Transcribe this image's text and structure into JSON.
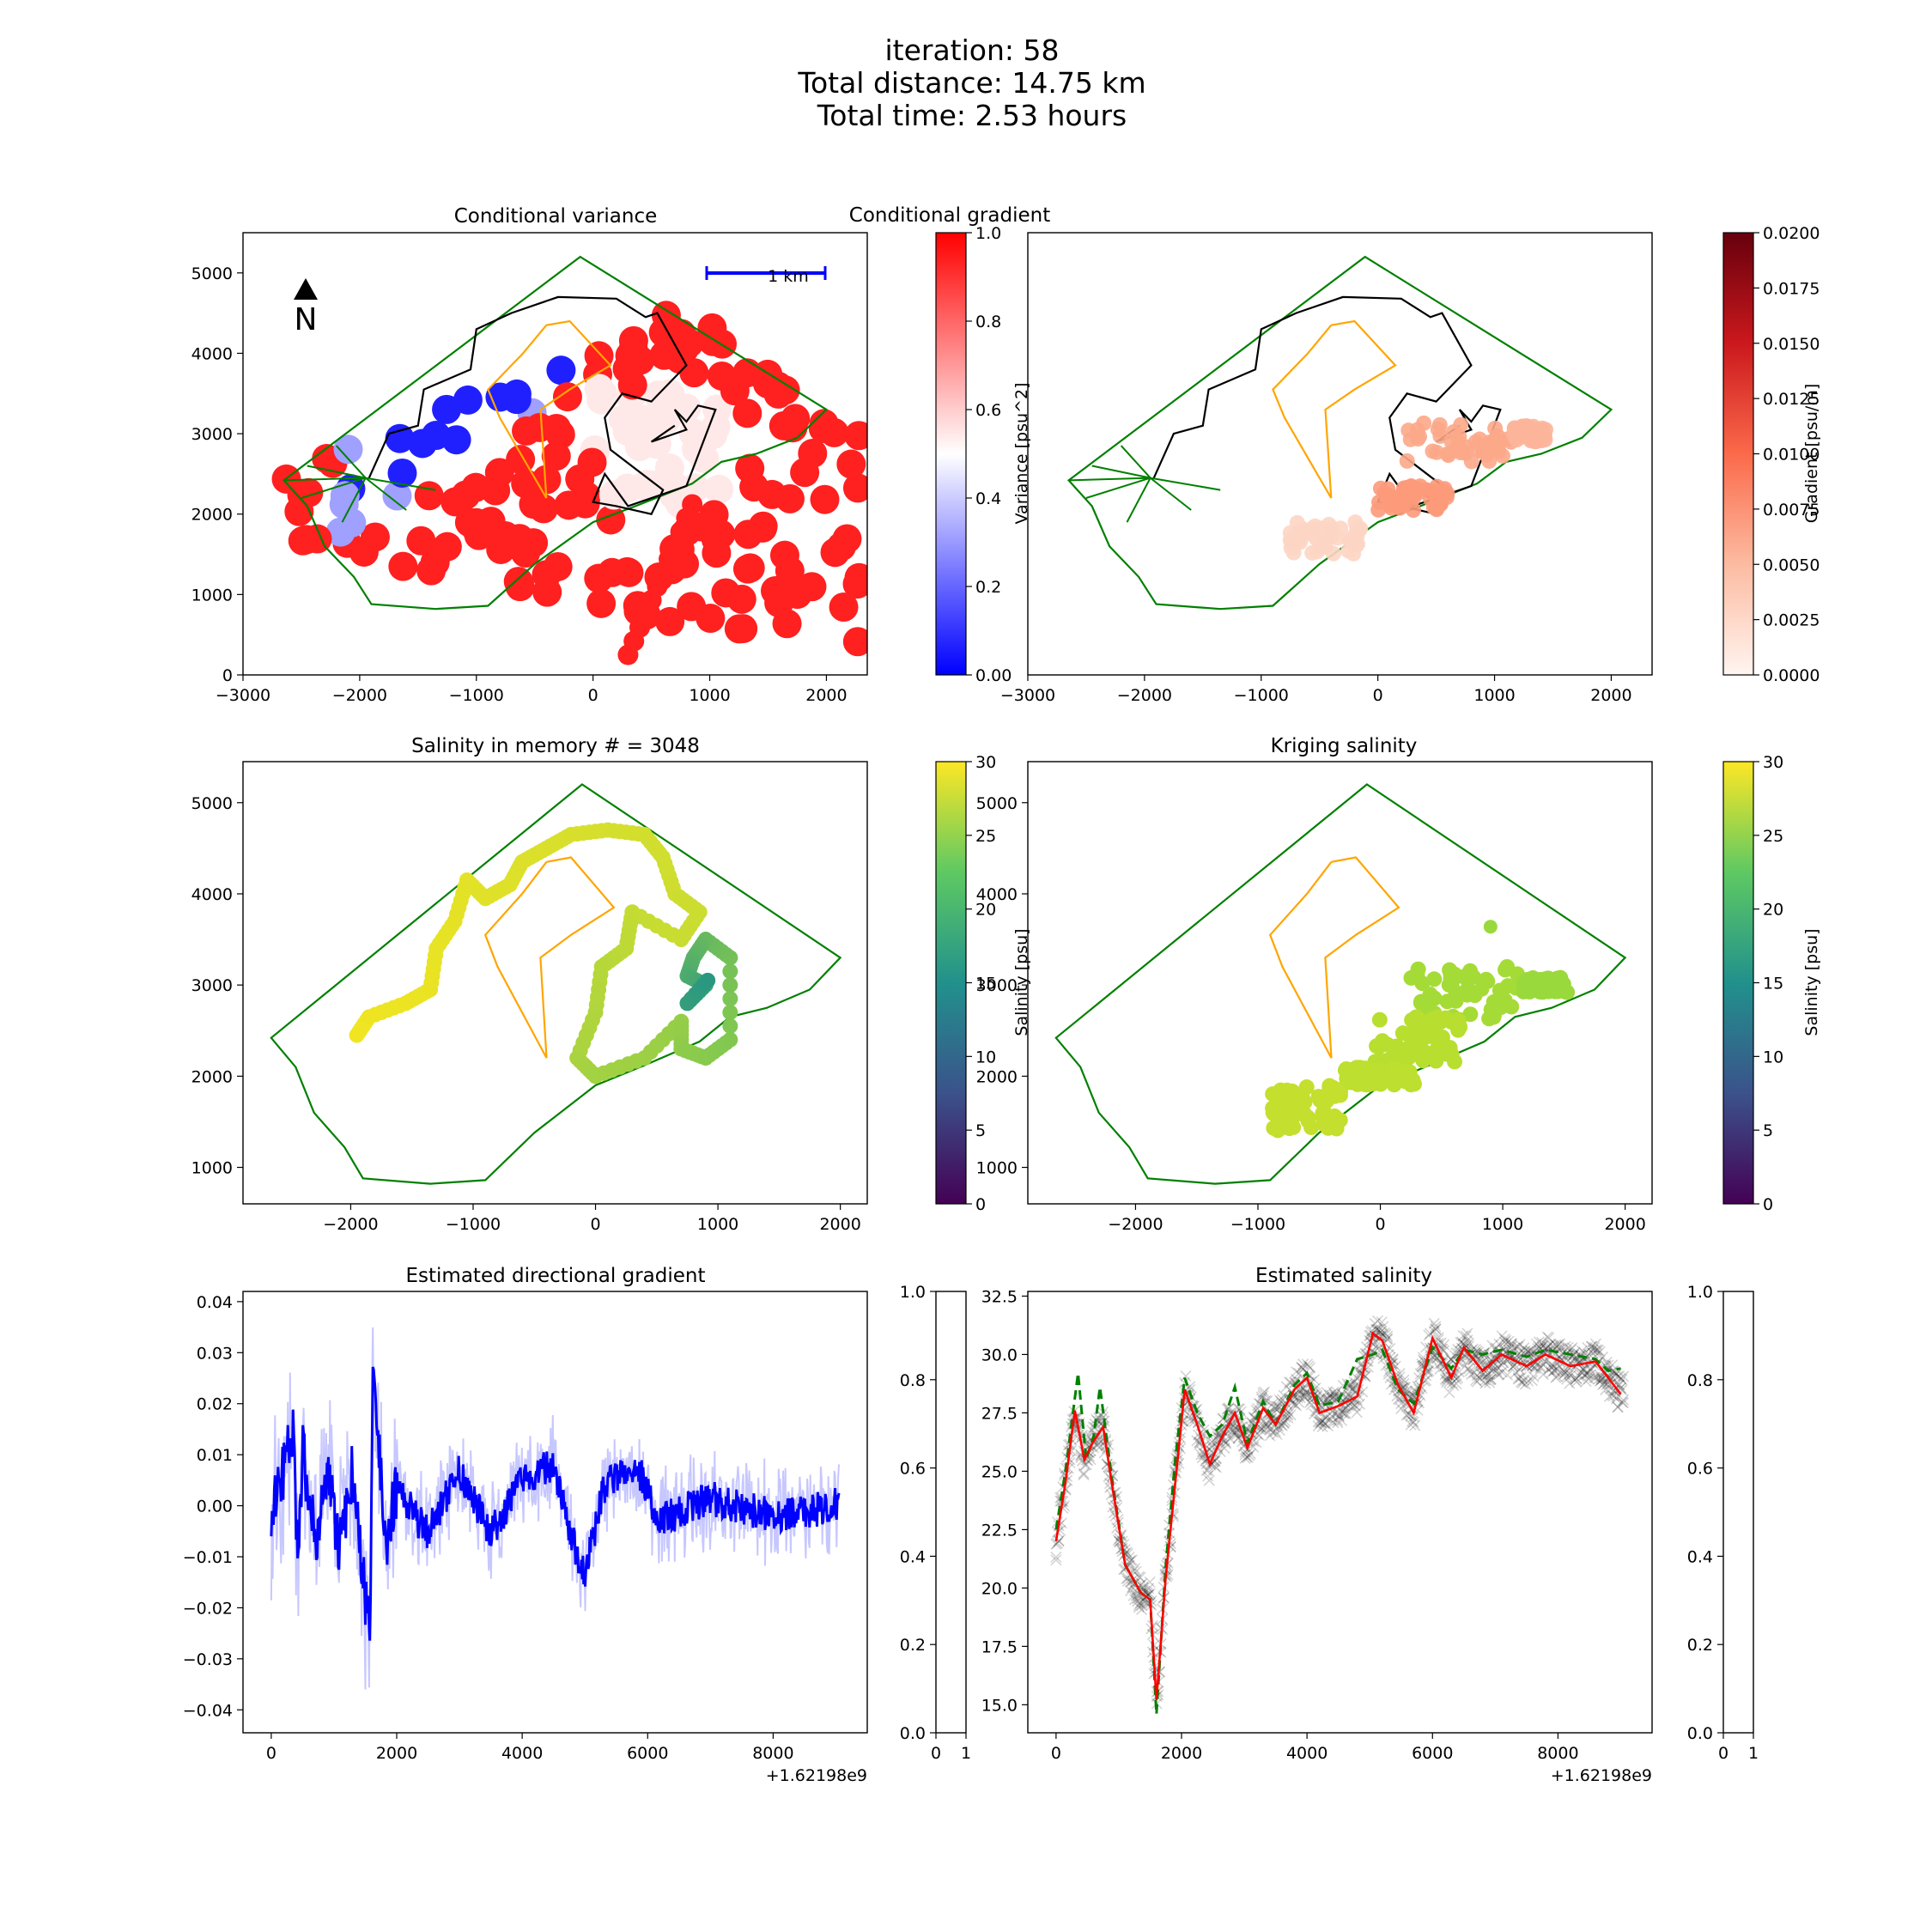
{
  "figure": {
    "suptitle": [
      "iteration: 58",
      "Total distance: 14.75 km",
      "Total time: 2.53 hours"
    ]
  },
  "chart_data": [
    {
      "type": "scatter",
      "title": "Conditional variance",
      "xticks": [
        "−3000",
        "−2000",
        "−1000",
        "0",
        "1000",
        "2000"
      ],
      "yticks": [
        "0",
        "1000",
        "2000",
        "3000",
        "4000",
        "5000"
      ],
      "xlim": [
        -3000,
        2350
      ],
      "ylim": [
        0,
        5500
      ],
      "annotations": {
        "scale_bar": "1 km",
        "north": "N"
      },
      "colorbar": {
        "label": "Variance [psu^2]",
        "ticks": [
          "0.00",
          "0.2",
          "0.4",
          "0.6",
          "0.8",
          "1.0"
        ],
        "range": [
          0,
          1
        ],
        "colormap": "bwr"
      }
    },
    {
      "type": "scatter",
      "title": "Conditional gradient",
      "xticks": [
        "−3000",
        "−2000",
        "−1000",
        "0",
        "1000",
        "2000"
      ],
      "xlim": [
        -3000,
        2350
      ],
      "ylim": [
        0,
        5500
      ],
      "colorbar": {
        "label": "Gradient [psu/m]",
        "ticks": [
          "0.0000",
          "0.0025",
          "0.0050",
          "0.0075",
          "0.0100",
          "0.0125",
          "0.0150",
          "0.0175",
          "0.0200"
        ],
        "range": [
          0,
          0.02
        ],
        "colormap": "Reds"
      }
    },
    {
      "type": "scatter",
      "title": "Salinity in memory # = 3048",
      "xticks": [
        "−2000",
        "−1000",
        "0",
        "1000",
        "2000"
      ],
      "yticks": [
        "1000",
        "2000",
        "3000",
        "4000",
        "5000"
      ],
      "xlim": [
        -2880,
        2220
      ],
      "ylim": [
        600,
        5450
      ],
      "colorbar": {
        "label": "Salinity [psu]",
        "ticks": [
          "0",
          "5",
          "10",
          "15",
          "20",
          "25",
          "30"
        ],
        "range": [
          0,
          30
        ],
        "colormap": "viridis"
      }
    },
    {
      "type": "scatter",
      "title": "Kriging salinity",
      "xticks": [
        "−2000",
        "−1000",
        "0",
        "1000",
        "2000"
      ],
      "yticks": [
        "1000",
        "2000",
        "3000",
        "4000",
        "5000"
      ],
      "xlim": [
        -2880,
        2220
      ],
      "ylim": [
        600,
        5450
      ],
      "colorbar": {
        "label": "Salinity [psu]",
        "ticks": [
          "0",
          "5",
          "10",
          "15",
          "20",
          "25",
          "30"
        ],
        "range": [
          0,
          30
        ],
        "colormap": "viridis"
      }
    },
    {
      "type": "line",
      "title": "Estimated directional gradient",
      "xticks": [
        "0",
        "2000",
        "4000",
        "6000",
        "8000"
      ],
      "x_offset_label": "+1.62198e9",
      "yticks": [
        "−0.04",
        "−0.03",
        "−0.02",
        "−0.01",
        "0.00",
        "0.01",
        "0.02",
        "0.03",
        "0.04"
      ],
      "xlim": [
        -450,
        9500
      ],
      "ylim": [
        -0.0445,
        0.042
      ],
      "side_axis": {
        "yticks": [
          "0.0",
          "0.2",
          "0.4",
          "0.6",
          "0.8",
          "1.0"
        ],
        "xticks": [
          "0",
          "1"
        ]
      },
      "series_key_points": [
        [
          0,
          0.0
        ],
        [
          200,
          0.01
        ],
        [
          350,
          0.02
        ],
        [
          420,
          -0.015
        ],
        [
          500,
          0.015
        ],
        [
          700,
          -0.01
        ],
        [
          900,
          0.008
        ],
        [
          1100,
          -0.012
        ],
        [
          1300,
          0.01
        ],
        [
          1450,
          -0.02
        ],
        [
          1580,
          -0.033
        ],
        [
          1620,
          0.032
        ],
        [
          1700,
          0.02
        ],
        [
          1850,
          -0.01
        ],
        [
          2000,
          0.005
        ],
        [
          2500,
          -0.008
        ],
        [
          3000,
          0.01
        ],
        [
          3500,
          -0.008
        ],
        [
          4000,
          0.007
        ],
        [
          4500,
          0.012
        ],
        [
          4800,
          -0.01
        ],
        [
          5000,
          -0.02
        ],
        [
          5300,
          0.005
        ],
        [
          5800,
          0.012
        ],
        [
          6200,
          -0.004
        ],
        [
          7000,
          0.002
        ],
        [
          8000,
          -0.003
        ],
        [
          9000,
          0.0
        ]
      ]
    },
    {
      "type": "line",
      "title": "Estimated salinity",
      "xticks": [
        "0",
        "2000",
        "4000",
        "6000",
        "8000"
      ],
      "x_offset_label": "+1.62198e9",
      "yticks": [
        "15.0",
        "17.5",
        "20.0",
        "22.5",
        "25.0",
        "27.5",
        "30.0",
        "32.5"
      ],
      "xlim": [
        -450,
        9500
      ],
      "ylim": [
        13.8,
        32.7
      ],
      "side_axis": {
        "yticks": [
          "0.0",
          "0.2",
          "0.4",
          "0.6",
          "0.8",
          "1.0"
        ],
        "xticks": [
          "0",
          "1"
        ]
      },
      "series": [
        {
          "points": [
            [
              0,
              22.0
            ],
            [
              150,
              24.5
            ],
            [
              300,
              27.6
            ],
            [
              450,
              25.5
            ],
            [
              600,
              26.3
            ],
            [
              750,
              26.9
            ],
            [
              900,
              24.3
            ],
            [
              1100,
              21.0
            ],
            [
              1350,
              19.8
            ],
            [
              1500,
              19.5
            ],
            [
              1600,
              15.2
            ],
            [
              1750,
              20.5
            ],
            [
              1900,
              24.5
            ],
            [
              2050,
              28.5
            ],
            [
              2250,
              27.0
            ],
            [
              2450,
              25.3
            ],
            [
              2650,
              26.5
            ],
            [
              2850,
              27.5
            ],
            [
              3050,
              26.0
            ],
            [
              3300,
              27.7
            ],
            [
              3500,
              27.0
            ],
            [
              3800,
              28.5
            ],
            [
              4000,
              29.0
            ],
            [
              4200,
              27.5
            ],
            [
              4500,
              27.8
            ],
            [
              4800,
              28.2
            ],
            [
              5050,
              30.9
            ],
            [
              5200,
              30.6
            ],
            [
              5450,
              28.7
            ],
            [
              5700,
              27.5
            ],
            [
              6000,
              30.7
            ],
            [
              6300,
              29.0
            ],
            [
              6500,
              30.3
            ],
            [
              6800,
              29.3
            ],
            [
              7100,
              30.0
            ],
            [
              7500,
              29.5
            ],
            [
              7800,
              30.0
            ],
            [
              8200,
              29.5
            ],
            [
              8600,
              29.7
            ],
            [
              8800,
              29.0
            ],
            [
              9000,
              28.3
            ]
          ]
        },
        {
          "points": [
            [
              0,
              22.5
            ],
            [
              150,
              25.0
            ],
            [
              350,
              29.2
            ],
            [
              480,
              25.5
            ],
            [
              600,
              26.5
            ],
            [
              700,
              28.6
            ],
            [
              900,
              24.5
            ],
            [
              1100,
              21.0
            ],
            [
              1350,
              19.8
            ],
            [
              1500,
              19.5
            ],
            [
              1600,
              14.6
            ],
            [
              1750,
              21.0
            ],
            [
              1900,
              25.5
            ],
            [
              2050,
              29.0
            ],
            [
              2250,
              27.5
            ],
            [
              2450,
              26.5
            ],
            [
              2650,
              27.0
            ],
            [
              2850,
              28.6
            ],
            [
              3050,
              26.2
            ],
            [
              3300,
              28.0
            ],
            [
              3500,
              27.0
            ],
            [
              3800,
              28.7
            ],
            [
              4000,
              29.2
            ],
            [
              4200,
              27.8
            ],
            [
              4500,
              28.0
            ],
            [
              4800,
              29.8
            ],
            [
              5050,
              30.0
            ],
            [
              5200,
              30.2
            ],
            [
              5450,
              28.5
            ],
            [
              5700,
              27.9
            ],
            [
              6000,
              30.3
            ],
            [
              6300,
              29.4
            ],
            [
              6500,
              30.2
            ],
            [
              6800,
              30.0
            ],
            [
              7100,
              30.2
            ],
            [
              7500,
              29.9
            ],
            [
              7800,
              30.2
            ],
            [
              8200,
              30.0
            ],
            [
              8600,
              29.8
            ],
            [
              8800,
              29.3
            ],
            [
              9000,
              29.4
            ]
          ]
        }
      ]
    }
  ]
}
